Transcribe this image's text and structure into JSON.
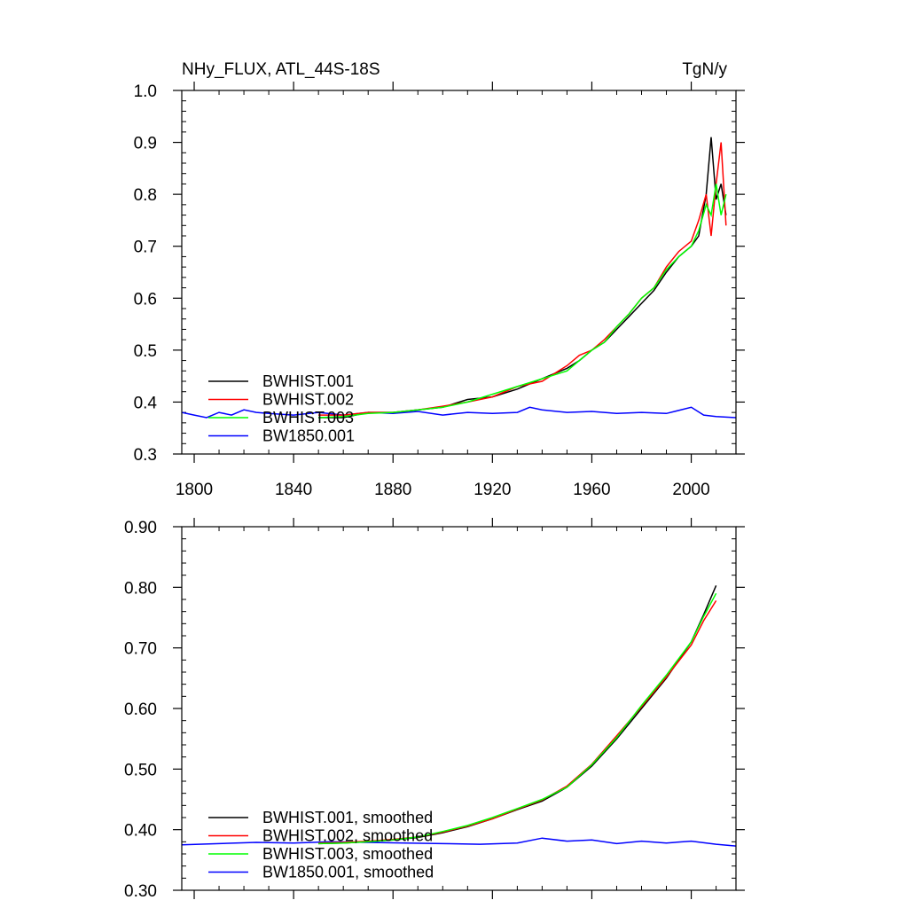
{
  "chart_data": [
    {
      "type": "line",
      "title": "NHy_FLUX, ATL_44S-18S",
      "units": "TgN/y",
      "xlim": [
        1795,
        2018
      ],
      "ylim": [
        0.3,
        1.0
      ],
      "x_ticks": [
        1800,
        1840,
        1880,
        1920,
        1960,
        2000
      ],
      "y_ticks": [
        "0.3",
        "0.4",
        "0.5",
        "0.6",
        "0.7",
        "0.8",
        "0.9",
        "1.0"
      ],
      "x_tick_labels_shown": true,
      "legend_position": "bottom-left",
      "series": [
        {
          "name": "BWHIST.001",
          "color": "#000000",
          "x": [
            1850,
            1860,
            1870,
            1880,
            1890,
            1900,
            1910,
            1920,
            1930,
            1940,
            1950,
            1955,
            1960,
            1965,
            1970,
            1975,
            1980,
            1985,
            1990,
            1995,
            2000,
            2003,
            2006,
            2008,
            2010,
            2012,
            2014
          ],
          "values": [
            0.37,
            0.37,
            0.38,
            0.38,
            0.385,
            0.39,
            0.405,
            0.41,
            0.425,
            0.445,
            0.465,
            0.48,
            0.5,
            0.515,
            0.54,
            0.565,
            0.59,
            0.615,
            0.65,
            0.68,
            0.7,
            0.72,
            0.8,
            0.91,
            0.79,
            0.82,
            0.76
          ]
        },
        {
          "name": "BWHIST.002",
          "color": "#ff0000",
          "x": [
            1850,
            1860,
            1870,
            1880,
            1890,
            1900,
            1910,
            1920,
            1930,
            1940,
            1950,
            1955,
            1960,
            1965,
            1970,
            1975,
            1980,
            1985,
            1990,
            1995,
            2000,
            2003,
            2006,
            2008,
            2010,
            2012,
            2014
          ],
          "values": [
            0.375,
            0.375,
            0.38,
            0.38,
            0.385,
            0.392,
            0.4,
            0.41,
            0.43,
            0.44,
            0.47,
            0.49,
            0.5,
            0.52,
            0.545,
            0.57,
            0.6,
            0.62,
            0.66,
            0.69,
            0.71,
            0.75,
            0.8,
            0.72,
            0.82,
            0.9,
            0.74
          ]
        },
        {
          "name": "BWHIST.003",
          "color": "#00ff00",
          "x": [
            1850,
            1860,
            1870,
            1880,
            1890,
            1900,
            1910,
            1920,
            1930,
            1940,
            1950,
            1955,
            1960,
            1965,
            1970,
            1975,
            1980,
            1985,
            1990,
            1995,
            2000,
            2003,
            2006,
            2008,
            2010,
            2012,
            2014
          ],
          "values": [
            0.37,
            0.372,
            0.378,
            0.38,
            0.385,
            0.39,
            0.4,
            0.415,
            0.43,
            0.445,
            0.46,
            0.48,
            0.5,
            0.515,
            0.545,
            0.57,
            0.6,
            0.62,
            0.655,
            0.68,
            0.7,
            0.73,
            0.78,
            0.76,
            0.82,
            0.76,
            0.8
          ]
        },
        {
          "name": "BW1850.001",
          "color": "#0000ff",
          "x": [
            1795,
            1800,
            1805,
            1810,
            1815,
            1820,
            1825,
            1830,
            1840,
            1850,
            1860,
            1870,
            1880,
            1890,
            1900,
            1910,
            1920,
            1930,
            1935,
            1940,
            1950,
            1960,
            1970,
            1980,
            1990,
            2000,
            2005,
            2010,
            2018
          ],
          "values": [
            0.38,
            0.375,
            0.37,
            0.38,
            0.375,
            0.385,
            0.38,
            0.378,
            0.375,
            0.38,
            0.375,
            0.38,
            0.378,
            0.382,
            0.375,
            0.38,
            0.378,
            0.38,
            0.39,
            0.385,
            0.38,
            0.382,
            0.378,
            0.38,
            0.378,
            0.39,
            0.375,
            0.372,
            0.37
          ]
        }
      ]
    },
    {
      "type": "line",
      "title": "",
      "xlim": [
        1795,
        2018
      ],
      "ylim": [
        0.3,
        0.9
      ],
      "x_ticks": [
        1800,
        1840,
        1880,
        1920,
        1960,
        2000
      ],
      "y_ticks": [
        "0.30",
        "0.40",
        "0.50",
        "0.60",
        "0.70",
        "0.80",
        "0.90"
      ],
      "x_tick_labels_shown": false,
      "legend_position": "bottom-left",
      "series": [
        {
          "name": "BWHIST.001, smoothed",
          "color": "#000000",
          "x": [
            1850,
            1860,
            1870,
            1880,
            1890,
            1900,
            1910,
            1920,
            1930,
            1940,
            1950,
            1960,
            1970,
            1980,
            1990,
            2000,
            2005,
            2010
          ],
          "values": [
            0.377,
            0.378,
            0.38,
            0.383,
            0.387,
            0.395,
            0.405,
            0.418,
            0.433,
            0.447,
            0.47,
            0.505,
            0.55,
            0.6,
            0.65,
            0.71,
            0.755,
            0.803
          ]
        },
        {
          "name": "BWHIST.002, smoothed",
          "color": "#ff0000",
          "x": [
            1850,
            1860,
            1870,
            1880,
            1890,
            1900,
            1910,
            1920,
            1930,
            1940,
            1950,
            1960,
            1970,
            1980,
            1990,
            2000,
            2005,
            2010
          ],
          "values": [
            0.378,
            0.379,
            0.381,
            0.384,
            0.388,
            0.396,
            0.406,
            0.418,
            0.434,
            0.449,
            0.472,
            0.508,
            0.555,
            0.603,
            0.652,
            0.705,
            0.745,
            0.778
          ]
        },
        {
          "name": "BWHIST.003, smoothed",
          "color": "#00ff00",
          "x": [
            1850,
            1860,
            1870,
            1880,
            1890,
            1900,
            1910,
            1920,
            1930,
            1940,
            1950,
            1960,
            1970,
            1980,
            1990,
            2000,
            2005,
            2010
          ],
          "values": [
            0.377,
            0.378,
            0.38,
            0.383,
            0.388,
            0.397,
            0.407,
            0.42,
            0.435,
            0.45,
            0.47,
            0.507,
            0.552,
            0.605,
            0.655,
            0.71,
            0.752,
            0.79
          ]
        },
        {
          "name": "BW1850.001, smoothed",
          "color": "#0000ff",
          "x": [
            1795,
            1810,
            1825,
            1840,
            1855,
            1870,
            1885,
            1900,
            1915,
            1930,
            1940,
            1950,
            1960,
            1970,
            1980,
            1990,
            2000,
            2010,
            2018
          ],
          "values": [
            0.375,
            0.377,
            0.379,
            0.378,
            0.38,
            0.379,
            0.378,
            0.377,
            0.376,
            0.378,
            0.386,
            0.381,
            0.383,
            0.377,
            0.381,
            0.378,
            0.381,
            0.376,
            0.373
          ]
        }
      ]
    }
  ]
}
